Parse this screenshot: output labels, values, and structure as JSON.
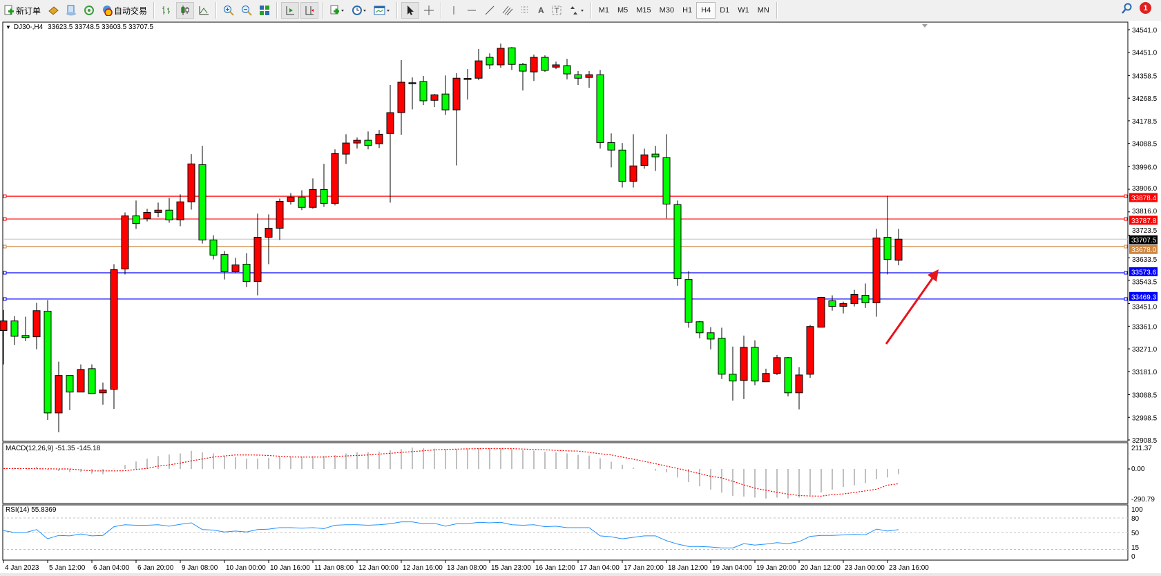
{
  "toolbar": {
    "new_order_label": "新订单",
    "auto_trading_label": "自动交易",
    "icons": [
      "new-order-icon",
      "gold-icon",
      "terminal-icon",
      "signals-icon",
      "auto-trading-icon",
      "bar-chart-icon",
      "candle-chart-icon",
      "line-chart-icon",
      "zoom-in-icon",
      "zoom-out-icon",
      "tile-windows-icon",
      "auto-scroll-icon",
      "chart-shift-icon",
      "indicators-icon",
      "periods-icon",
      "templates-icon",
      "cursor-icon",
      "crosshair-icon",
      "vertical-line-icon",
      "horizontal-line-icon",
      "trendline-icon",
      "equidistant-channel-icon",
      "fibonacci-icon",
      "text-icon",
      "text-label-icon",
      "arrows-icon"
    ],
    "text_tool_label": "A",
    "timeframes": [
      "M1",
      "M5",
      "M15",
      "M30",
      "H1",
      "H4",
      "D1",
      "W1",
      "MN"
    ],
    "active_timeframe": "H4",
    "notification_count": "1"
  },
  "chart": {
    "symbol": "DJ30-,H4",
    "ohlc_text": "33623.5 33748.5 33603.5 33707.5",
    "bull_color": "#ff0000",
    "bear_color": "#00ff00",
    "price_axis_labels": [
      "34541.0",
      "34451.0",
      "34358.5",
      "34268.5",
      "34178.5",
      "34088.5",
      "33996.0",
      "33906.0",
      "33816.0",
      "33723.5",
      "33633.5",
      "33543.5",
      "33451.0",
      "33361.0",
      "33271.0",
      "33181.0",
      "33088.5",
      "32998.5",
      "32908.5"
    ],
    "levels": [
      {
        "price": 33878.4,
        "label": "33878.4",
        "color": "#ff0000"
      },
      {
        "price": 33787.8,
        "label": "33787.8",
        "color": "#ff0000"
      },
      {
        "price": 33678.0,
        "label": "33678.0",
        "color": "#cd853f"
      },
      {
        "price": 33573.6,
        "label": "33573.6",
        "color": "#0000ff"
      },
      {
        "price": 33469.3,
        "label": "33469.3",
        "color": "#0000ff"
      }
    ],
    "bid": {
      "price": 33707.5,
      "label": "33707.5"
    },
    "time_labels": [
      "4 Jan 2023",
      "5 Jan 12:00",
      "6 Jan 04:00",
      "6 Jan 20:00",
      "9 Jan 08:00",
      "10 Jan 00:00",
      "10 Jan 16:00",
      "11 Jan 08:00",
      "12 Jan 00:00",
      "12 Jan 16:00",
      "13 Jan 08:00",
      "15 Jan 23:00",
      "16 Jan 12:00",
      "17 Jan 04:00",
      "17 Jan 20:00",
      "18 Jan 12:00",
      "19 Jan 04:00",
      "19 Jan 20:00",
      "20 Jan 12:00",
      "23 Jan 00:00",
      "23 Jan 16:00"
    ],
    "annotation": "red-arrow-up-right"
  },
  "macd": {
    "label": "MACD(12,26,9) -51.35 -145.18",
    "axis_labels": [
      "211.37",
      "0.00",
      "-290.79"
    ],
    "range": [
      -290.79,
      211.37
    ]
  },
  "rsi": {
    "label": "RSI(14) 55.8369",
    "axis_labels": [
      "100",
      "80",
      "50",
      "15",
      "0"
    ],
    "levels": [
      80,
      50,
      15
    ]
  },
  "chart_data": {
    "type": "candlestick",
    "ylim": [
      32908.5,
      34541.0
    ],
    "ohlc": [
      [
        33344,
        33426,
        33209,
        33382
      ],
      [
        33382,
        33401,
        33286,
        33321
      ],
      [
        33324,
        33399,
        33302,
        33316
      ],
      [
        33319,
        33454,
        33269,
        33423
      ],
      [
        33421,
        33465,
        32988,
        33016
      ],
      [
        33016,
        33220,
        32939,
        33165
      ],
      [
        33165,
        33165,
        33027,
        33099
      ],
      [
        33099,
        33209,
        33099,
        33189
      ],
      [
        33192,
        33209,
        33093,
        33093
      ],
      [
        33096,
        33137,
        33049,
        33107
      ],
      [
        33110,
        33608,
        33032,
        33586
      ],
      [
        33589,
        33814,
        33567,
        33800
      ],
      [
        33800,
        33861,
        33748,
        33770
      ],
      [
        33790,
        33828,
        33778,
        33814
      ],
      [
        33814,
        33853,
        33795,
        33823
      ],
      [
        33823,
        33872,
        33773,
        33784
      ],
      [
        33784,
        33886,
        33759,
        33856
      ],
      [
        33856,
        34046,
        33825,
        34007
      ],
      [
        34004,
        34079,
        33690,
        33704
      ],
      [
        33704,
        33723,
        33627,
        33644
      ],
      [
        33646,
        33660,
        33547,
        33578
      ],
      [
        33578,
        33633,
        33575,
        33605
      ],
      [
        33608,
        33652,
        33517,
        33539
      ],
      [
        33539,
        33809,
        33484,
        33715
      ],
      [
        33715,
        33806,
        33608,
        33751
      ],
      [
        33751,
        33869,
        33704,
        33858
      ],
      [
        33858,
        33891,
        33845,
        33875
      ],
      [
        33875,
        33902,
        33823,
        33834
      ],
      [
        33834,
        33949,
        33828,
        33905
      ],
      [
        33905,
        34007,
        33836,
        33850
      ],
      [
        33850,
        34065,
        33842,
        34048
      ],
      [
        34046,
        34125,
        34007,
        34090
      ],
      [
        34090,
        34112,
        34068,
        34101
      ],
      [
        34101,
        34136,
        34065,
        34081
      ],
      [
        34087,
        34142,
        34070,
        34125
      ],
      [
        34128,
        34321,
        33853,
        34211
      ],
      [
        34211,
        34420,
        34123,
        34332
      ],
      [
        34329,
        34351,
        34224,
        34330
      ],
      [
        34335,
        34357,
        34241,
        34258
      ],
      [
        34260,
        34285,
        34233,
        34282
      ],
      [
        34285,
        34359,
        34202,
        34222
      ],
      [
        34222,
        34368,
        34001,
        34348
      ],
      [
        34346,
        34384,
        34263,
        34347
      ],
      [
        34348,
        34464,
        34340,
        34417
      ],
      [
        34431,
        34447,
        34384,
        34401
      ],
      [
        34401,
        34486,
        34390,
        34467
      ],
      [
        34469,
        34472,
        34381,
        34403
      ],
      [
        34403,
        34409,
        34299,
        34376
      ],
      [
        34373,
        34442,
        34337,
        34431
      ],
      [
        34431,
        34439,
        34373,
        34379
      ],
      [
        34392,
        34414,
        34384,
        34401
      ],
      [
        34398,
        34425,
        34343,
        34365
      ],
      [
        34362,
        34376,
        34321,
        34348
      ],
      [
        34351,
        34376,
        34310,
        34362
      ],
      [
        34362,
        34381,
        34068,
        34092
      ],
      [
        34092,
        34128,
        33993,
        34062
      ],
      [
        34062,
        34090,
        33913,
        33938
      ],
      [
        33938,
        34125,
        33913,
        33999
      ],
      [
        34001,
        34068,
        33988,
        34043
      ],
      [
        34046,
        34079,
        33979,
        34035
      ],
      [
        34032,
        34125,
        33790,
        33847
      ],
      [
        33845,
        33861,
        33522,
        33550
      ],
      [
        33547,
        33580,
        33355,
        33377
      ],
      [
        33379,
        33382,
        33313,
        33335
      ],
      [
        33335,
        33357,
        33269,
        33310
      ],
      [
        33313,
        33355,
        33151,
        33170
      ],
      [
        33170,
        33280,
        33065,
        33143
      ],
      [
        33145,
        33324,
        33071,
        33277
      ],
      [
        33277,
        33305,
        33126,
        33143
      ],
      [
        33140,
        33192,
        33140,
        33173
      ],
      [
        33173,
        33247,
        33167,
        33236
      ],
      [
        33236,
        33239,
        33082,
        33096
      ],
      [
        33096,
        33198,
        33030,
        33167
      ],
      [
        33170,
        33366,
        33156,
        33360
      ],
      [
        33357,
        33478,
        33357,
        33476
      ],
      [
        33462,
        33484,
        33423,
        33440
      ],
      [
        33440,
        33459,
        33412,
        33451
      ],
      [
        33451,
        33506,
        33440,
        33487
      ],
      [
        33484,
        33531,
        33434,
        33454
      ],
      [
        33454,
        33748,
        33399,
        33712
      ],
      [
        33715,
        33880,
        33567,
        33627
      ],
      [
        33623.5,
        33748.5,
        33603.5,
        33707.5
      ]
    ],
    "macd_histogram": [
      5,
      13,
      4,
      21,
      -8,
      -21,
      -31,
      -31,
      -46,
      -52,
      2,
      40,
      73,
      102,
      127,
      142,
      153,
      178,
      163,
      153,
      130,
      117,
      102,
      102,
      109,
      119,
      121,
      123,
      127,
      130,
      136,
      153,
      165,
      165,
      171,
      184,
      195,
      211,
      205,
      200,
      195,
      195,
      200,
      205,
      205,
      200,
      195,
      184,
      180,
      169,
      163,
      153,
      140,
      132,
      105,
      71,
      42,
      13,
      1,
      -17,
      -33,
      -84,
      -130,
      -171,
      -203,
      -234,
      -265,
      -272,
      -282,
      -291,
      -282,
      -291,
      -282,
      -259,
      -230,
      -203,
      -178,
      -161,
      -140,
      -102,
      -84,
      -51.35
    ],
    "macd_signal": [
      4,
      3,
      3,
      2,
      1,
      0,
      0,
      -10,
      -19,
      -19,
      -19,
      -18,
      -5,
      5,
      28,
      40,
      58,
      79,
      98,
      117,
      128,
      138,
      138,
      137,
      133,
      125,
      118,
      117,
      117,
      117,
      122,
      128,
      133,
      138,
      146,
      154,
      163,
      171,
      179,
      188,
      192,
      195,
      198,
      200,
      200,
      200,
      200,
      196,
      192,
      189,
      183,
      178,
      176,
      164,
      150,
      138,
      117,
      96,
      75,
      52,
      28,
      5,
      -20,
      -46,
      -72,
      -88,
      -122,
      -157,
      -190,
      -210,
      -230,
      -248,
      -262,
      -266,
      -268,
      -252,
      -246,
      -232,
      -216,
      -200,
      -160,
      -145.18
    ],
    "rsi": [
      54,
      50,
      50,
      56,
      37,
      44,
      43,
      47,
      43,
      44,
      62,
      66,
      65,
      65,
      66,
      63,
      67,
      70,
      56,
      55,
      51,
      53,
      51,
      56,
      57,
      60,
      60,
      59,
      60,
      58,
      65,
      66,
      66,
      65,
      66,
      68,
      72,
      72,
      68,
      69,
      63,
      68,
      68,
      71,
      70,
      71,
      66,
      65,
      66,
      62,
      63,
      60,
      60,
      60,
      43,
      41,
      37,
      40,
      43,
      43,
      33,
      26,
      21,
      21,
      20,
      18,
      18,
      27,
      24,
      26,
      29,
      27,
      31,
      42,
      44,
      44,
      45,
      46,
      45,
      57,
      53,
      55.8369
    ]
  }
}
